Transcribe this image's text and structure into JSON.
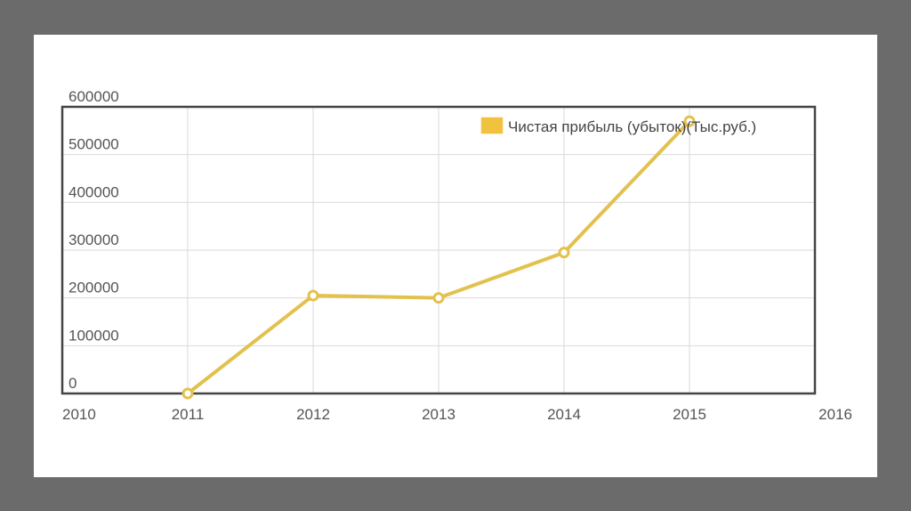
{
  "colors": {
    "frame": "#6b6b6b",
    "line": "#e3c14f",
    "marker_fill": "#ffffff",
    "grid": "#d9d9d9",
    "plot_border": "#444444",
    "legend_swatch": "#f0c23e"
  },
  "chart_data": {
    "type": "line",
    "title": "",
    "xlabel": "",
    "ylabel": "",
    "xlim": [
      2010,
      2016
    ],
    "ylim": [
      0,
      600000
    ],
    "x_ticks": [
      "2010",
      "2011",
      "2012",
      "2013",
      "2014",
      "2015",
      "2016"
    ],
    "y_ticks": [
      "0",
      "100000",
      "200000",
      "300000",
      "400000",
      "500000",
      "600000"
    ],
    "grid": true,
    "legend_position": "top-right",
    "series": [
      {
        "name": "Чистая прибыль (убыток)(Тыс.руб.)",
        "x": [
          2011,
          2012,
          2013,
          2014,
          2015
        ],
        "y": [
          0,
          205000,
          200000,
          295000,
          570000
        ]
      }
    ]
  }
}
